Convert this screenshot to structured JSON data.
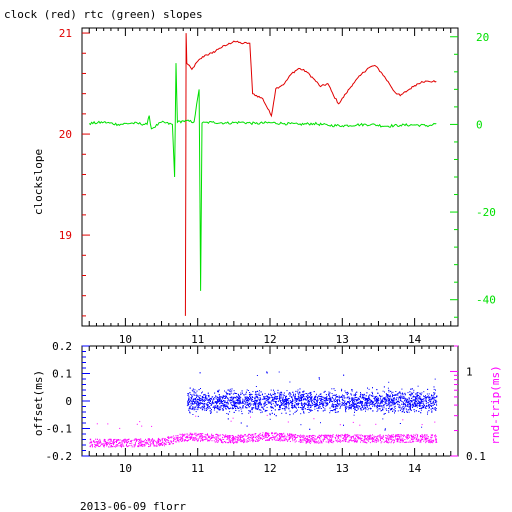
{
  "header": {
    "title": "clock (red) rtc (green) slopes"
  },
  "footer": {
    "caption": "2013-06-09 florr"
  },
  "colors": {
    "red": "#e00000",
    "green": "#00e000",
    "blue": "#0000ff",
    "magenta": "#ff00ff",
    "axis": "#000000"
  },
  "chart_data": [
    {
      "type": "line",
      "title": "clock (red) rtc (green) slopes",
      "xlabel": "",
      "xlim": [
        9.4,
        14.6
      ],
      "x_ticks": [
        "10",
        "11",
        "12",
        "13",
        "14"
      ],
      "ylabel": "clockslope",
      "ylim": [
        18.1,
        21.05
      ],
      "y_ticks": [
        "19",
        "20",
        "21"
      ],
      "y2lim": [
        -46,
        22
      ],
      "y2_ticks": [
        "-40",
        "-20",
        "0",
        "20"
      ],
      "grid": false,
      "series": [
        {
          "color": "red",
          "axis": "left",
          "points": [
            [
              10.83,
              18.2
            ],
            [
              10.84,
              21.0
            ],
            [
              10.85,
              20.7
            ],
            [
              10.92,
              20.64
            ],
            [
              11.0,
              20.72
            ],
            [
              11.1,
              20.78
            ],
            [
              11.2,
              20.8
            ],
            [
              11.3,
              20.85
            ],
            [
              11.4,
              20.88
            ],
            [
              11.5,
              20.92
            ],
            [
              11.6,
              20.9
            ],
            [
              11.72,
              20.9
            ],
            [
              11.76,
              20.4
            ],
            [
              11.9,
              20.35
            ],
            [
              12.02,
              20.18
            ],
            [
              12.08,
              20.45
            ],
            [
              12.2,
              20.5
            ],
            [
              12.3,
              20.6
            ],
            [
              12.4,
              20.65
            ],
            [
              12.5,
              20.62
            ],
            [
              12.6,
              20.55
            ],
            [
              12.7,
              20.47
            ],
            [
              12.8,
              20.5
            ],
            [
              12.88,
              20.38
            ],
            [
              12.95,
              20.3
            ],
            [
              13.05,
              20.4
            ],
            [
              13.15,
              20.5
            ],
            [
              13.25,
              20.58
            ],
            [
              13.35,
              20.65
            ],
            [
              13.45,
              20.68
            ],
            [
              13.55,
              20.6
            ],
            [
              13.65,
              20.5
            ],
            [
              13.72,
              20.42
            ],
            [
              13.8,
              20.38
            ],
            [
              13.9,
              20.43
            ],
            [
              14.0,
              20.48
            ],
            [
              14.1,
              20.52
            ],
            [
              14.2,
              20.52
            ],
            [
              14.3,
              20.52
            ]
          ]
        },
        {
          "color": "green",
          "axis": "right",
          "points": [
            [
              9.5,
              0.2
            ],
            [
              9.7,
              0.5
            ],
            [
              9.9,
              0.0
            ],
            [
              10.1,
              0.3
            ],
            [
              10.3,
              0.0
            ],
            [
              10.33,
              2.0
            ],
            [
              10.36,
              -1.0
            ],
            [
              10.5,
              0.5
            ],
            [
              10.65,
              0.0
            ],
            [
              10.68,
              -12.0
            ],
            [
              10.7,
              14.0
            ],
            [
              10.72,
              0.5
            ],
            [
              10.8,
              0.8
            ],
            [
              10.95,
              0.6
            ],
            [
              11.02,
              8.0
            ],
            [
              11.04,
              -38.0
            ],
            [
              11.06,
              0.3
            ],
            [
              11.2,
              0.5
            ],
            [
              11.4,
              0.3
            ],
            [
              11.6,
              0.5
            ],
            [
              11.8,
              0.2
            ],
            [
              12.0,
              0.4
            ],
            [
              12.2,
              0.2
            ],
            [
              12.4,
              0.0
            ],
            [
              12.6,
              0.2
            ],
            [
              12.8,
              -0.2
            ],
            [
              13.0,
              -0.3
            ],
            [
              13.2,
              -0.1
            ],
            [
              13.4,
              0.0
            ],
            [
              13.6,
              -0.4
            ],
            [
              13.8,
              -0.2
            ],
            [
              14.0,
              -0.1
            ],
            [
              14.2,
              -0.3
            ],
            [
              14.3,
              0.2
            ]
          ]
        }
      ]
    },
    {
      "type": "scatter",
      "title": "",
      "xlabel": "",
      "xlim": [
        9.4,
        14.6
      ],
      "x_ticks": [
        "10",
        "11",
        "12",
        "13",
        "14"
      ],
      "ylabel": "offset(ms)",
      "ylim": [
        -0.2,
        0.2
      ],
      "y_ticks": [
        "0.2",
        "0.1",
        "0",
        "-0.1",
        "-0.2"
      ],
      "y2label": "rnd-trip(ms)",
      "y2_scale": "log",
      "y2lim": [
        0.1,
        2
      ],
      "y2_ticks": [
        "1",
        "0.1"
      ],
      "grid": false,
      "series": [
        {
          "color": "blue",
          "axis": "left",
          "x_range": [
            10.85,
            14.3
          ],
          "center": 0.0,
          "spread": 0.05
        },
        {
          "color": "magenta",
          "axis": "right",
          "points": [
            [
              9.5,
              0.145
            ],
            [
              10.0,
              0.145
            ],
            [
              10.5,
              0.148
            ],
            [
              10.8,
              0.17
            ],
            [
              11.0,
              0.17
            ],
            [
              11.5,
              0.16
            ],
            [
              12.0,
              0.175
            ],
            [
              12.5,
              0.16
            ],
            [
              13.0,
              0.165
            ],
            [
              13.5,
              0.162
            ],
            [
              14.0,
              0.165
            ],
            [
              14.3,
              0.163
            ]
          ],
          "spread": 0.02
        }
      ]
    }
  ]
}
